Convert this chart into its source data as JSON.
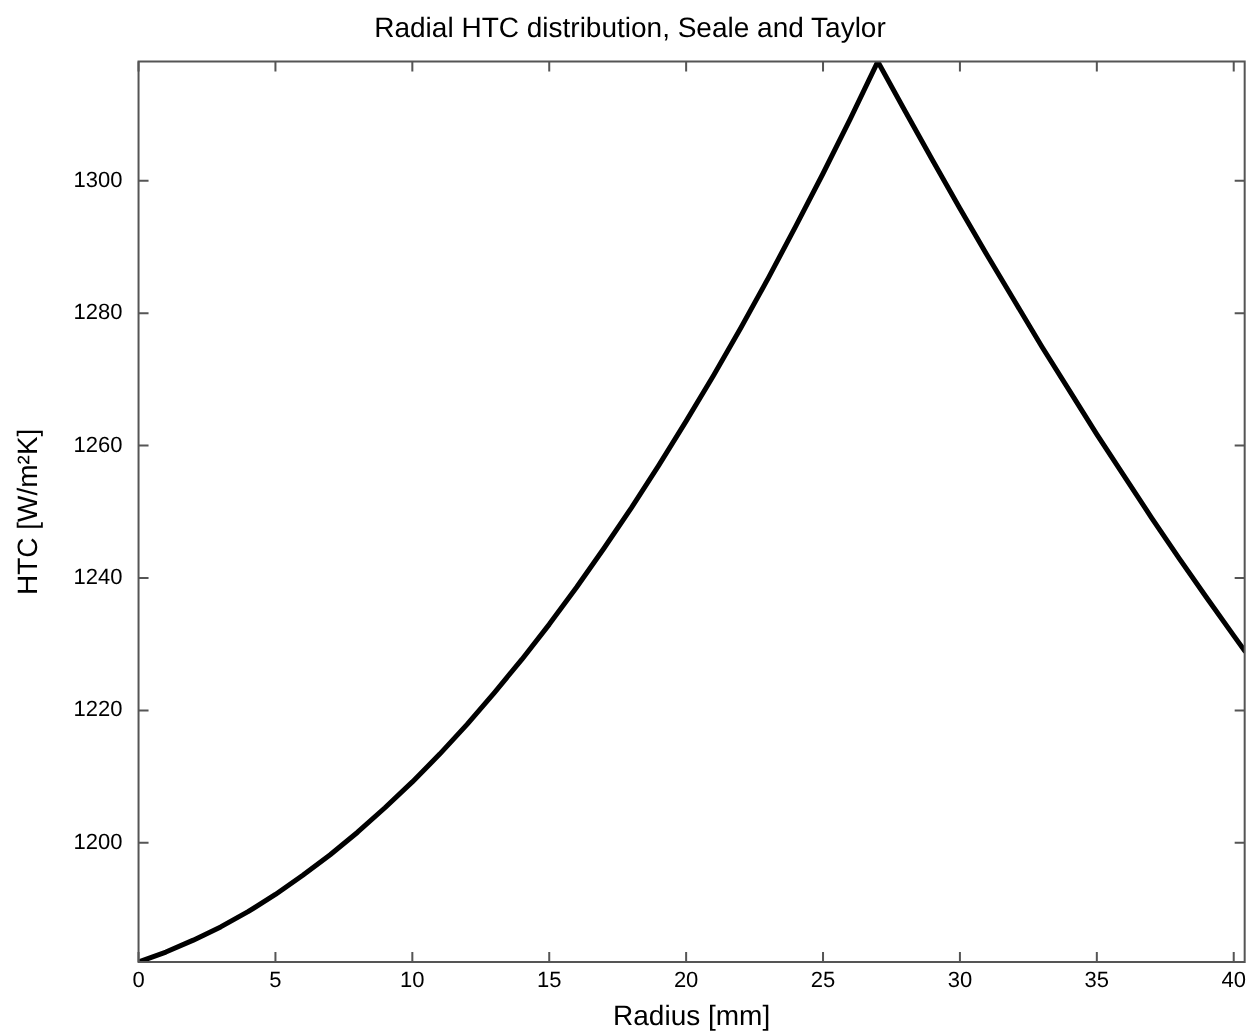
{
  "chart_data": {
    "type": "line",
    "title": "Radial HTC distribution, Seale and Taylor",
    "xlabel": "Radius [mm]",
    "ylabel": "HTC [W/m²K]",
    "x": [
      0,
      1,
      2,
      3,
      4,
      5,
      6,
      7,
      8,
      9,
      10,
      11,
      12,
      13,
      14,
      15,
      16,
      17,
      18,
      19,
      20,
      21,
      22,
      23,
      24,
      25,
      26,
      27,
      28,
      29,
      30,
      31,
      32,
      33,
      34,
      35,
      36,
      37,
      38,
      39,
      40,
      40.4
    ],
    "series": [
      {
        "color": "#000000",
        "values": [
          1182,
          1183.5,
          1185.3,
          1187.3,
          1189.6,
          1192.2,
          1195.1,
          1198.2,
          1201.6,
          1205.3,
          1209.2,
          1213.4,
          1217.9,
          1222.7,
          1227.7,
          1233.0,
          1238.6,
          1244.5,
          1250.6,
          1257.0,
          1263.7,
          1270.6,
          1277.8,
          1285.3,
          1293.1,
          1301.1,
          1309.4,
          1318.0,
          1310.5,
          1303.1,
          1295.8,
          1288.7,
          1281.8,
          1274.9,
          1268.3,
          1261.7,
          1255.4,
          1249.1,
          1243.0,
          1237.1,
          1231.3,
          1229.0
        ]
      }
    ],
    "xlim": [
      0,
      40.4
    ],
    "xticks": [
      0,
      5,
      10,
      15,
      20,
      25,
      30,
      35,
      40
    ],
    "ylim": [
      1182,
      1318
    ],
    "yticks": [
      1200,
      1220,
      1240,
      1260,
      1280,
      1300
    ],
    "marker": "none",
    "line_style": "solid",
    "legend": false
  }
}
